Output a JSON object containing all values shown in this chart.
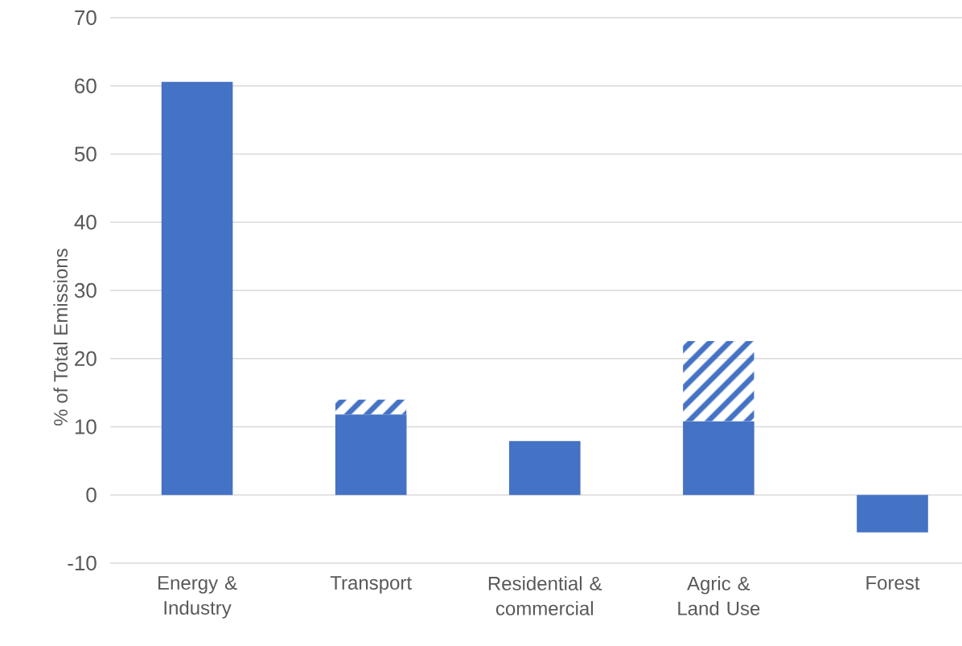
{
  "chart_data": {
    "type": "bar",
    "stacked": true,
    "ylabel": "% of Total Emissions",
    "categories": [
      "Energy & Industry",
      "Transport",
      "Residential & commercial",
      "Agric & Land Use",
      "Forest"
    ],
    "series": [
      {
        "color": "#4472c4",
        "values": [
          60.6,
          11.8,
          7.9,
          10.8,
          -5.5
        ]
      },
      {
        "color": "#4472c4",
        "values": [
          null,
          2.2,
          null,
          11.8,
          null
        ]
      }
    ],
    "ylim": [
      -10,
      70
    ],
    "yticks": [
      -10,
      0,
      10,
      20,
      30,
      40,
      50,
      60,
      70
    ],
    "grid": "y"
  }
}
